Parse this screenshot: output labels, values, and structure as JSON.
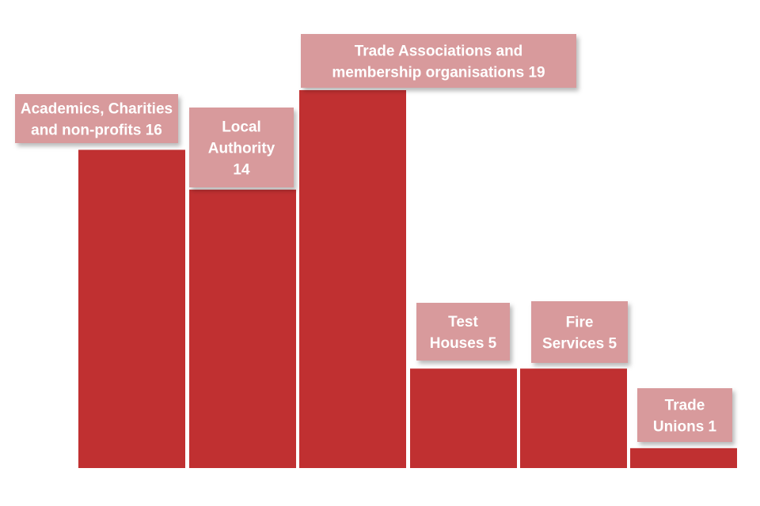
{
  "chart_data": {
    "type": "bar",
    "categories": [
      "Academics, Charities and non-profits",
      "Local Authority",
      "Trade Associations and membership organisations",
      "Test Houses",
      "Fire Services",
      "Trade Unions"
    ],
    "values": [
      16,
      14,
      19,
      5,
      5,
      1
    ],
    "data_labels": [
      [
        "Academics, Charities",
        "and non-profits 16"
      ],
      [
        "Local",
        "Authority",
        "14"
      ],
      [
        "Trade Associations and",
        "membership organisations 19"
      ],
      [
        "Test",
        "Houses 5"
      ],
      [
        "Fire",
        "Services 5"
      ],
      [
        "Trade",
        "Unions 1"
      ]
    ],
    "title": "",
    "xlabel": "",
    "ylabel": "",
    "ylim": [
      0,
      19
    ],
    "grid": false,
    "legend": "none",
    "colors": {
      "bar": "#c03031",
      "label_box": "#d89a9c",
      "label_text": "#ffffff"
    }
  }
}
